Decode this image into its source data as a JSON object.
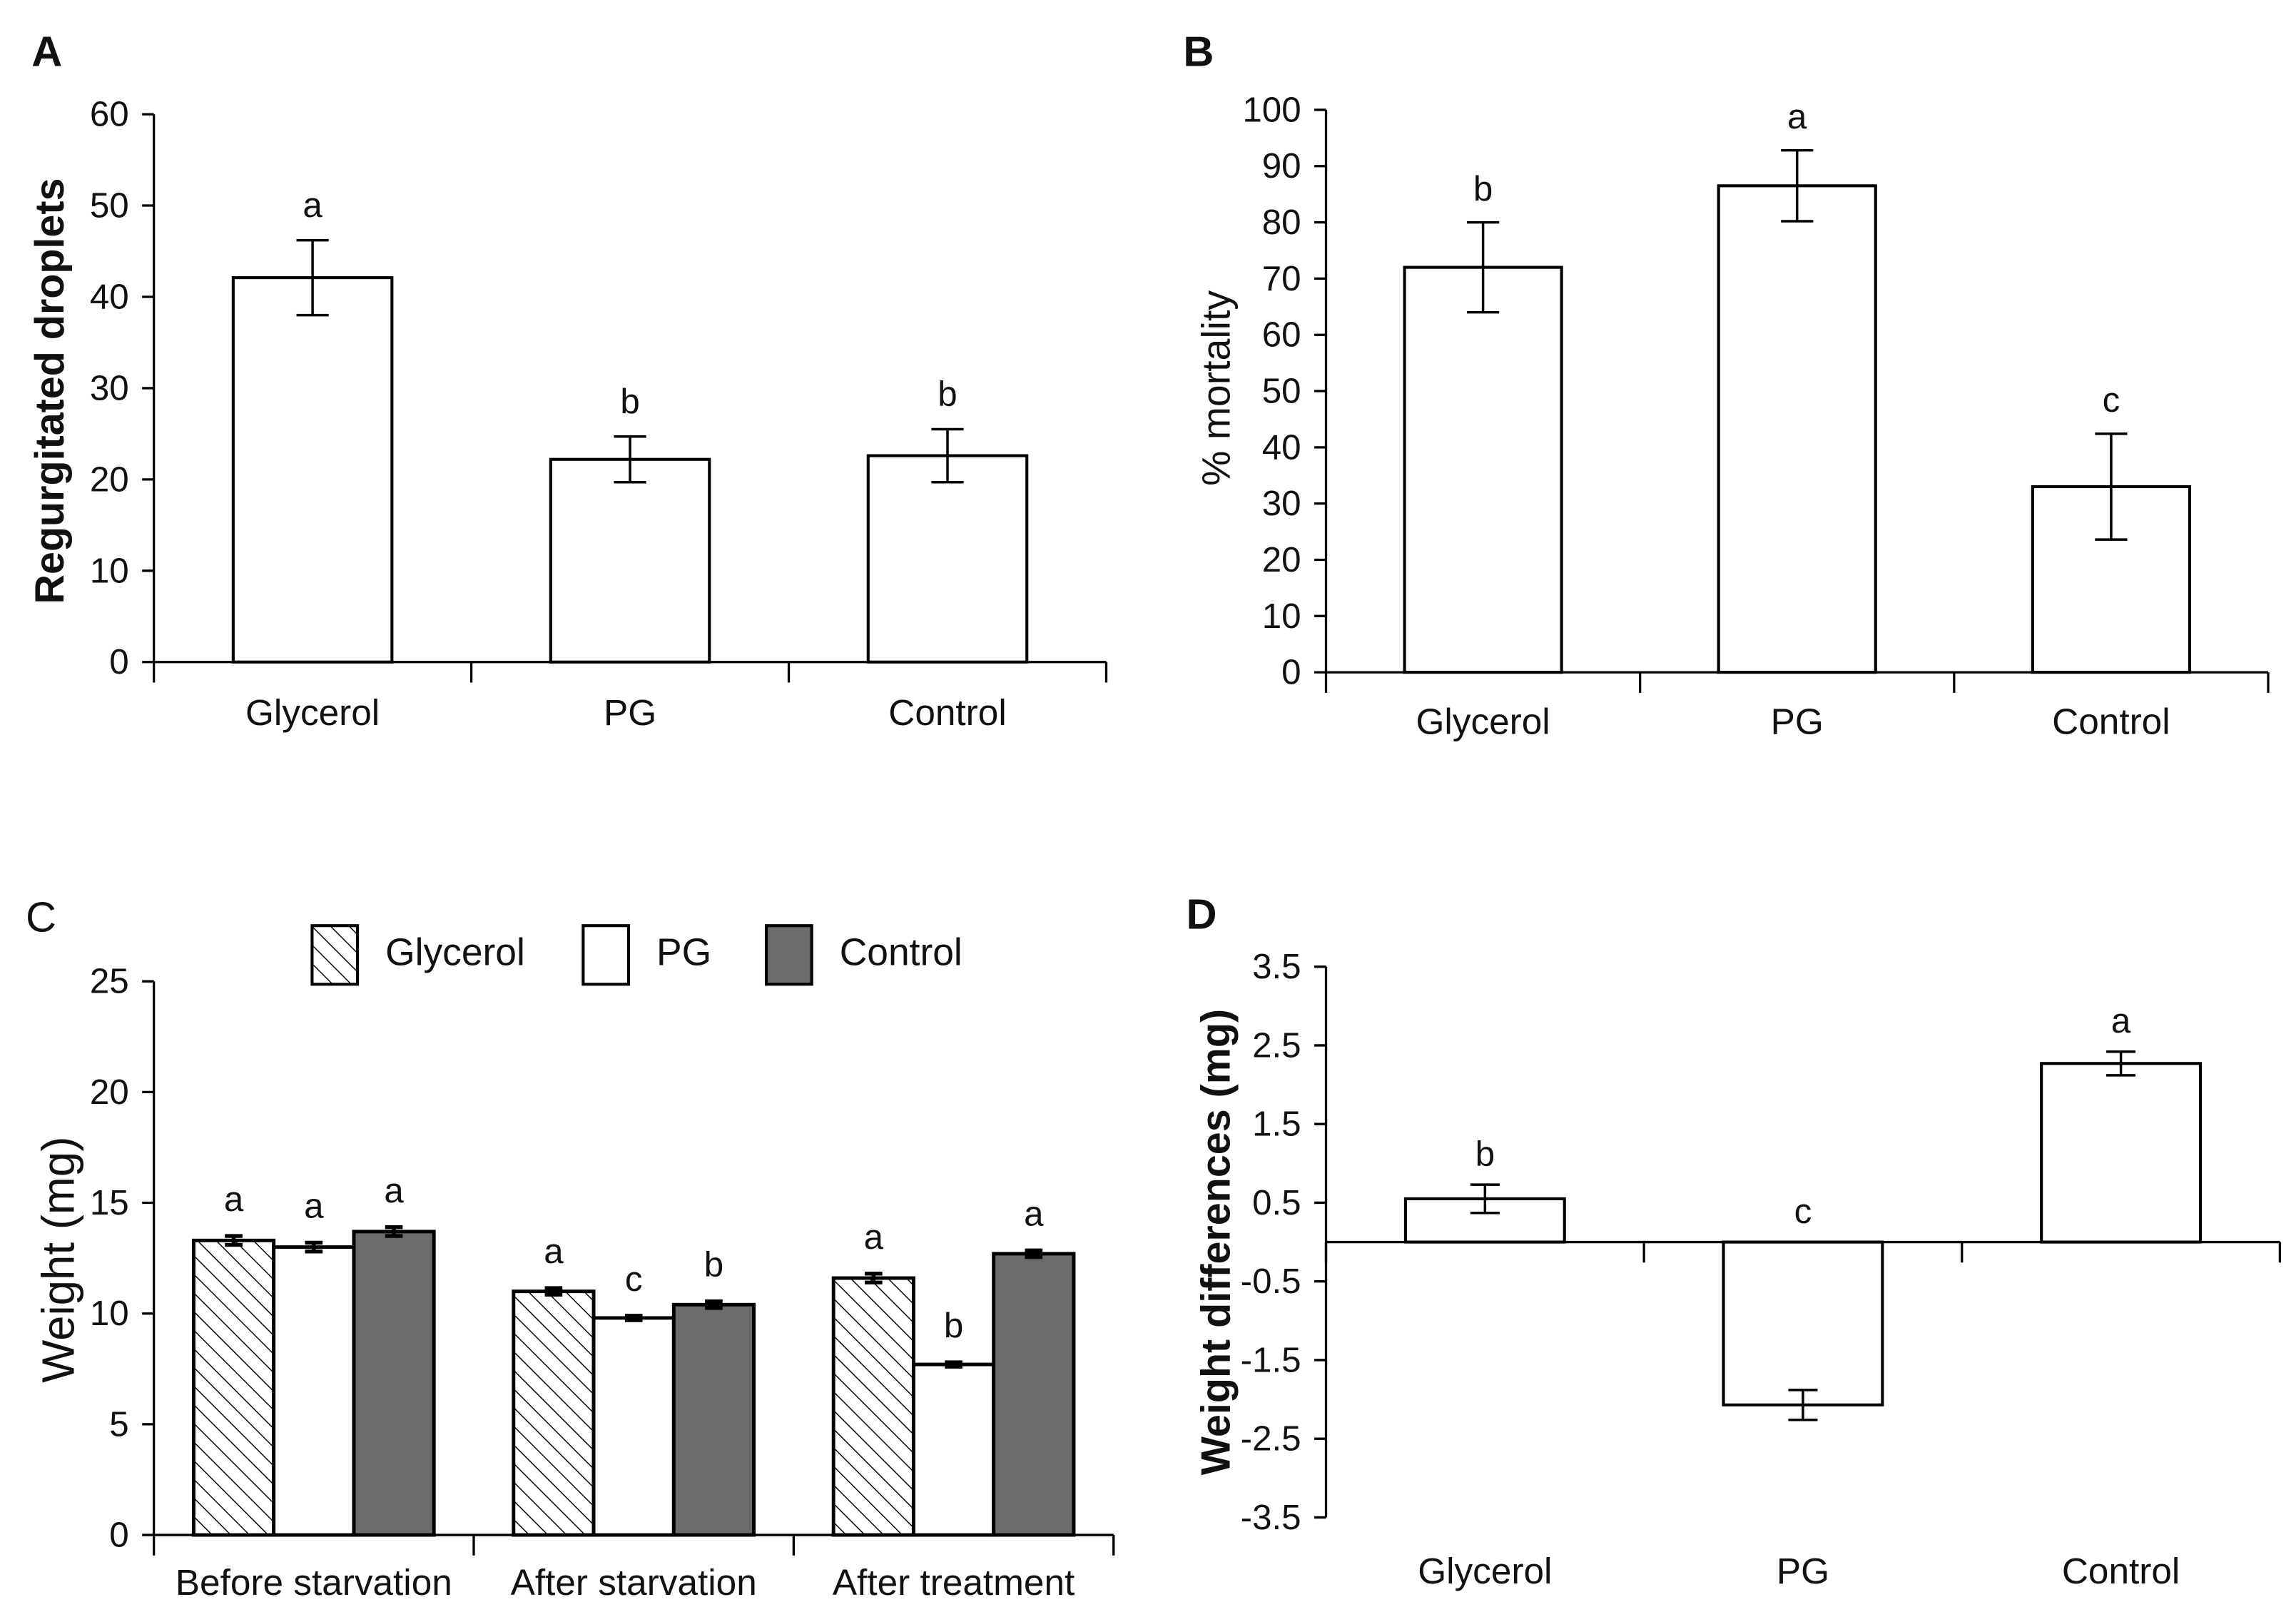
{
  "chart_data": [
    {
      "panel": "A",
      "type": "bar",
      "categories": [
        "Glycerol",
        "PG",
        "Control"
      ],
      "values": [
        42.1,
        22.2,
        22.6
      ],
      "errors": [
        4.1,
        2.5,
        2.9
      ],
      "letters": [
        "a",
        "b",
        "b"
      ],
      "ylabel": "Regurgitated droplets",
      "ylim": [
        0,
        60
      ],
      "yticks": [
        0,
        10,
        20,
        30,
        40,
        50,
        60
      ],
      "bar_fill": "#ffffff"
    },
    {
      "panel": "B",
      "type": "bar",
      "categories": [
        "Glycerol",
        "PG",
        "Control"
      ],
      "values": [
        72,
        86.5,
        33
      ],
      "errors": [
        8,
        6.3,
        9.4
      ],
      "letters": [
        "b",
        "a",
        "c"
      ],
      "ylabel": "% mortality",
      "ylim": [
        0,
        100
      ],
      "yticks": [
        0,
        10,
        20,
        30,
        40,
        50,
        60,
        70,
        80,
        90,
        100
      ],
      "bar_fill": "#ffffff"
    },
    {
      "panel": "C",
      "type": "bar",
      "categories": [
        "Before starvation",
        "After starvation",
        "After treatment"
      ],
      "series": [
        {
          "name": "Glycerol",
          "values": [
            13.3,
            11.0,
            11.6
          ],
          "errors": [
            0.2,
            0.15,
            0.2
          ],
          "letters": [
            "a",
            "a",
            "a"
          ],
          "fill": "#ffffff",
          "hatched": true
        },
        {
          "name": "PG",
          "values": [
            13.0,
            9.8,
            7.7
          ],
          "errors": [
            0.2,
            0.1,
            0.1
          ],
          "letters": [
            "a",
            "c",
            "b"
          ],
          "fill": "#ffffff",
          "hatched": false
        },
        {
          "name": "Control",
          "values": [
            13.7,
            10.4,
            12.7
          ],
          "errors": [
            0.2,
            0.15,
            0.15
          ],
          "letters": [
            "a",
            "b",
            "a"
          ],
          "fill": "#6b6b6b",
          "hatched": false
        }
      ],
      "ylabel": "Weight (mg)",
      "ylim": [
        0,
        25
      ],
      "yticks": [
        0,
        5,
        10,
        15,
        20,
        25
      ],
      "legend": "top"
    },
    {
      "panel": "D",
      "type": "bar",
      "categories": [
        "Glycerol",
        "PG",
        "Control"
      ],
      "values": [
        0.55,
        -2.07,
        2.27
      ],
      "errors": [
        0.18,
        0.19,
        0.15
      ],
      "letters": [
        "b",
        "c",
        "a"
      ],
      "ylabel": "Weight differences (mg)",
      "ylim": [
        -3.5,
        3.5
      ],
      "yticks": [
        3.5,
        2.5,
        1.5,
        0.5,
        -0.5,
        -1.5,
        -2.5,
        -3.5
      ],
      "bar_fill": "#ffffff"
    }
  ]
}
